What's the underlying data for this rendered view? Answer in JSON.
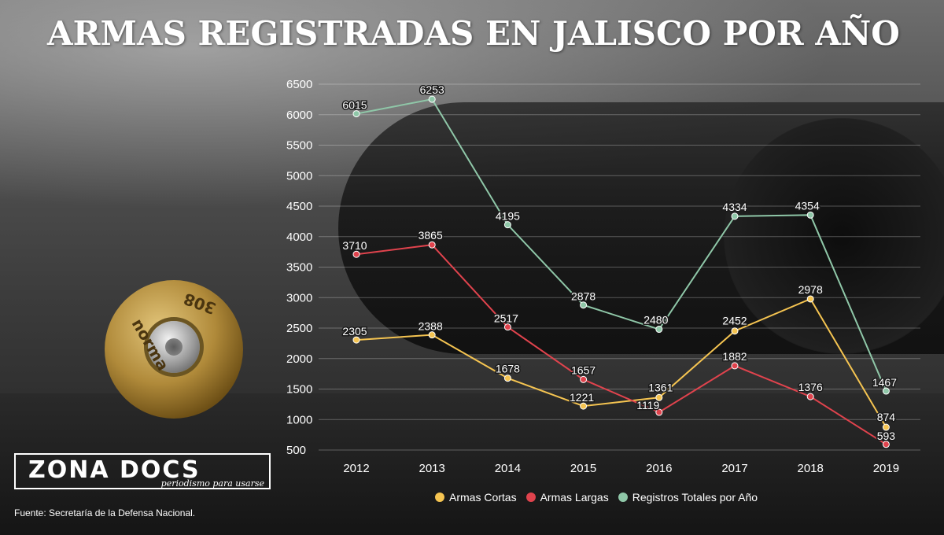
{
  "title": "ARMAS REGISTRADAS EN JALISCO POR AÑO",
  "logo": {
    "name": "ZONA DOCS",
    "tagline": "periodismo para usarse"
  },
  "source": "Fuente: Secretaría de la Defensa Nacional.",
  "cartridge_stamp": "308 norma",
  "chart_data": {
    "type": "line",
    "x": [
      "2012",
      "2013",
      "2014",
      "2015",
      "2016",
      "2017",
      "2018",
      "2019"
    ],
    "yticks": [
      500,
      1000,
      1500,
      2000,
      2500,
      3000,
      3500,
      4000,
      4500,
      5000,
      5500,
      6000,
      6500
    ],
    "ylim": [
      500,
      6500
    ],
    "grid": true,
    "legend_position": "bottom",
    "series": [
      {
        "name": "Armas Cortas",
        "color": "#f5c451",
        "values": [
          2305,
          2388,
          1678,
          1221,
          1361,
          2452,
          2978,
          874
        ]
      },
      {
        "name": "Armas Largas",
        "color": "#e0434d",
        "values": [
          3710,
          3865,
          2517,
          1657,
          1119,
          1882,
          1376,
          593
        ]
      },
      {
        "name": "Registros Totales por Año",
        "color": "#8fc7a8",
        "values": [
          6015,
          6253,
          4195,
          2878,
          2480,
          4334,
          4354,
          1467
        ]
      }
    ]
  }
}
